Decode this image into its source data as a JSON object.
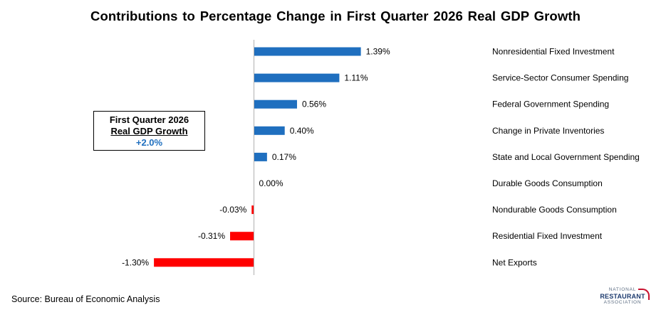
{
  "title": "Contributions  to Percentage Change in First Quarter 2026 Real GDP Growth",
  "callout": {
    "line1": "First Quarter 2026",
    "line2": "Real GDP Growth",
    "value": "+2.0%"
  },
  "source": "Source: Bureau of Economic Analysis",
  "logo": {
    "line1": "NATIONAL",
    "line2": "RESTAURANT",
    "line3": "ASSOCIATION"
  },
  "colors": {
    "positive": "#1f6fbf",
    "negative": "#ff0000",
    "callout_value": "#1f6fbf",
    "axis": "#b0b0b0"
  },
  "chart_data": {
    "type": "bar",
    "orientation": "horizontal",
    "categories": [
      "Nonresidential Fixed Investment",
      "Service-Sector Consumer Spending",
      "Federal Government Spending",
      "Change in Private Inventories",
      "State and Local Government Spending",
      "Durable Goods Consumption",
      "Nondurable Goods Consumption",
      "Residential Fixed Investment",
      "Net Exports"
    ],
    "values": [
      1.39,
      1.11,
      0.56,
      0.4,
      0.17,
      0.0,
      -0.03,
      -0.31,
      -1.3
    ],
    "data_labels": [
      "1.39%",
      "1.11%",
      "0.56%",
      "0.40%",
      "0.17%",
      "0.00%",
      "-0.03%",
      "-0.31%",
      "-1.30%"
    ],
    "xlim": [
      -1.3,
      1.39
    ],
    "grid": false,
    "legend": "none",
    "category_label_position": "right"
  }
}
